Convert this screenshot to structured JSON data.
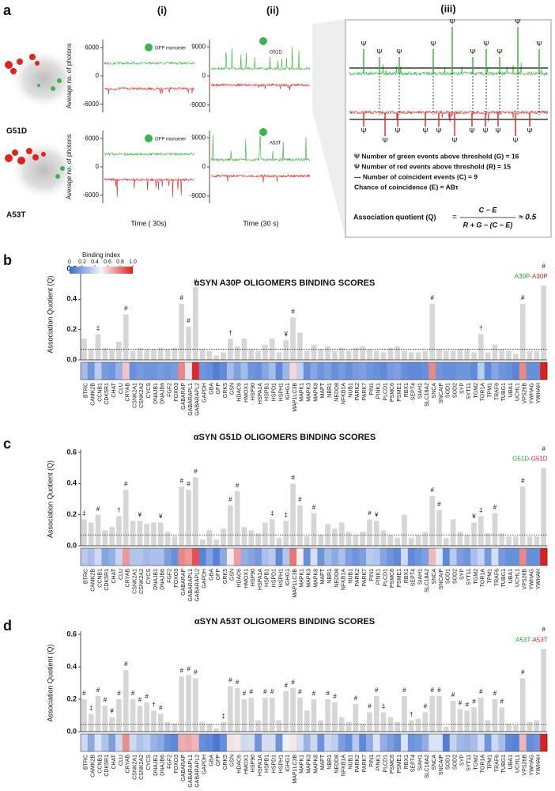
{
  "figure_a": {
    "label": "a",
    "columns": [
      "(i)",
      "(ii)",
      "(iii)"
    ],
    "y_label": "Average no. of photons",
    "x_labels": [
      "Time ( 30s)",
      "Time (30 s)"
    ],
    "rows": [
      {
        "mutant": "G51D",
        "traces": [
          {
            "inset": "GFP monomer",
            "yticks": [
              6000,
              0,
              -6000
            ],
            "ylim": [
              -7700,
              7700
            ]
          },
          {
            "inset": "G51D",
            "yticks": [
              9000,
              0,
              -9000
            ],
            "ylim": [
              -11250,
              11250
            ]
          }
        ]
      },
      {
        "mutant": "A53T",
        "traces": [
          {
            "inset": "GFP monomer",
            "yticks": [
              6000,
              0,
              -6000
            ],
            "ylim": [
              -7700,
              7700
            ]
          },
          {
            "inset": "A53T",
            "yticks": [
              9000,
              0,
              -9000
            ],
            "ylim": [
              -11250,
              11250
            ]
          }
        ]
      }
    ],
    "event_symbol": "Ψ",
    "legend": [
      {
        "text": "Ψ Number of green events above threshold (G) = 16",
        "color": "#22a822"
      },
      {
        "text": "Ψ Number of red events above threshold (R) = 15",
        "color": "#e02020"
      },
      {
        "text": "--- Number of coincident events (C) = 9",
        "color": "#111111"
      },
      {
        "text": "Chance of coincidence (E) = ABτ",
        "color": "#111111"
      }
    ],
    "equation": {
      "lhs": "Association quotient (Q)",
      "equals": "=",
      "numerator": "C − E",
      "denominator": "R + G − (C − E)",
      "result": "≈ 0.5"
    }
  },
  "chart_data": [
    {
      "type": "bar",
      "panel": "b",
      "title": "αSYN A30P OLIGOMERS BINDING SCORES",
      "y_label": "Association Quotient (Q)",
      "ylim": [
        0,
        0.6
      ],
      "yticks": [
        {
          "value": 0,
          "label": "0.0"
        },
        0.2,
        0.4,
        0.6
      ],
      "threshold": 0.07,
      "color": "#d6d6d6",
      "self_label": [
        {
          "text": "A30P-",
          "color": "#22a822"
        },
        {
          "text": "A30P",
          "color": "#e02020"
        }
      ],
      "colorbar": {
        "title": "Binding index",
        "lim": [
          0,
          1
        ],
        "ticks": [
          0,
          0.2,
          0.4,
          0.6,
          0.8,
          {
            "value": 1,
            "label": "1.0"
          }
        ]
      },
      "categories": [
        "BTRC",
        "CAMK2B",
        "CCNB1",
        "CDK5R1",
        "CHAT",
        "CLU",
        "CRYAB",
        "CSNK2A1",
        "CSNK2A2",
        "CYCS",
        "DNAJB1",
        "DNAJB6",
        "FGF2",
        "FOXO3",
        "GABARAP",
        "GABARAPL1",
        "GABARAPL2",
        "GAPDH",
        "GBA",
        "GFP",
        "GRK5",
        "GSN",
        "HDAC6",
        "HMOX1",
        "HSP90",
        "HSPA1A",
        "HSPB1",
        "HSPD1",
        "HSPH1",
        "IGHG1",
        "MAP1LC3B",
        "MAPK1",
        "MAPK3",
        "MAPK8",
        "MAPT",
        "NBR1",
        "NEDD8",
        "NFKB1A",
        "NUB1",
        "PARK2",
        "PARK7",
        "PIN1",
        "PINK1",
        "PLCD1",
        "PSMC6",
        "PSME1",
        "RBX1",
        "SEPT4",
        "SIAH1",
        "SLC18A2",
        "SNCA",
        "SNCAIP",
        "SOD1",
        "SOD2",
        "SYP",
        "SYT11",
        "TGM2",
        "TOR1A",
        "TPM1",
        "TRAF6",
        "TUBG1",
        "UBA1",
        "UCHL1",
        "VPS26B",
        "YWHAG",
        "YWHAH",
        null
      ],
      "values": [
        0.14,
        0.07,
        0.17,
        0.08,
        0.07,
        0.12,
        0.3,
        0.06,
        0.08,
        0.07,
        0.07,
        0.08,
        0.07,
        0.08,
        0.37,
        0.22,
        0.48,
        0.07,
        0.06,
        0.03,
        0.05,
        0.14,
        0.09,
        0.14,
        0.07,
        0.06,
        0.1,
        0.14,
        0.05,
        0.13,
        0.28,
        0.18,
        0.06,
        0.1,
        0.07,
        0.09,
        0.06,
        0.08,
        0.06,
        0.08,
        0.09,
        0.07,
        0.06,
        0.05,
        0.08,
        0.09,
        0.06,
        0.05,
        0.05,
        0.06,
        0.37,
        0.07,
        0.06,
        0.06,
        0.07,
        0.07,
        0.05,
        0.17,
        0.05,
        0.1,
        0.07,
        0.06,
        0.04,
        0.37,
        0.06,
        0.06,
        0.49
      ],
      "markers": [
        null,
        null,
        "‡",
        null,
        null,
        null,
        "#",
        null,
        null,
        null,
        null,
        null,
        null,
        null,
        "#",
        "#",
        "#",
        null,
        null,
        null,
        null,
        "†",
        null,
        null,
        null,
        null,
        null,
        null,
        null,
        "¥",
        "#",
        null,
        null,
        null,
        null,
        null,
        null,
        null,
        null,
        null,
        null,
        null,
        null,
        null,
        null,
        null,
        null,
        null,
        null,
        null,
        "#",
        null,
        null,
        null,
        null,
        null,
        null,
        "†",
        null,
        null,
        null,
        null,
        null,
        "#",
        null,
        null,
        "#"
      ]
    },
    {
      "type": "bar",
      "panel": "c",
      "title": "αSYN G51D OLIGOMERS BINDING SCORES",
      "y_label": "Association Quotient (Q)",
      "ylim": [
        0,
        0.6
      ],
      "yticks": [
        {
          "value": 0,
          "label": "0.0"
        },
        0.2,
        0.4,
        0.6
      ],
      "threshold": 0.07,
      "color": "#d6d6d6",
      "self_label": [
        {
          "text": "G51D-",
          "color": "#22a822"
        },
        {
          "text": "G51D",
          "color": "#e02020"
        }
      ],
      "categories": [
        "BTRC",
        "CAMK2B",
        "CCNB1",
        "CDK5R1",
        "CHAT",
        "CLU",
        "CRYAB",
        "CSNK2A1",
        "CSNK2A2",
        "CYCS",
        "DNAJB1",
        "DNAJB6",
        "FGF2",
        "FOXO3",
        "GABARAP",
        "GABARAPL1",
        "GABARAPL2",
        "GAPDH",
        "GBA",
        "GFP",
        "GRK5",
        "GSN",
        "HDAC6",
        "HMOX1",
        "HSP90",
        "HSPA1A",
        "HSPB1",
        "HSPD1",
        "HSPH1",
        "IGHG1",
        "MAP1LC3B",
        "MAPK1",
        "MAPK3",
        "MAPK8",
        "MAPT",
        "NBR1",
        "NEDD8",
        "NFKB1A",
        "NUB1",
        "PARK2",
        "PARK7",
        "PIN1",
        "PINK1",
        "PLCD1",
        "PSMC6",
        "PSME1",
        "RBX1",
        "SEPT4",
        "SIAH1",
        "SLC18A2",
        "SNCA",
        "SNCAIP",
        "SOD1",
        "SOD2",
        "SYP",
        "SYT11",
        "TGM2",
        "TOR1A",
        "TPM1",
        "TRAF6",
        "TUBG1",
        "UBA1",
        "UCHL1",
        "VPS26B",
        "YWHAG",
        "YWHAH",
        null
      ],
      "values": [
        0.17,
        0.15,
        0.2,
        0.1,
        0.12,
        0.19,
        0.36,
        0.16,
        0.16,
        0.14,
        0.15,
        0.15,
        0.09,
        0.06,
        0.38,
        0.36,
        0.44,
        0.04,
        0.1,
        0.04,
        0.11,
        0.26,
        0.35,
        0.12,
        0.1,
        0.08,
        0.15,
        0.17,
        0.05,
        0.16,
        0.4,
        0.26,
        0.06,
        0.21,
        0.07,
        0.14,
        0.11,
        0.15,
        0.09,
        0.07,
        0.09,
        0.17,
        0.16,
        0.1,
        0.07,
        0.05,
        0.2,
        0.05,
        0.07,
        0.09,
        0.32,
        0.23,
        0.05,
        0.17,
        0.09,
        0.07,
        0.15,
        0.19,
        0.08,
        0.21,
        0.08,
        0.06,
        0.06,
        0.38,
        0.06,
        0.06,
        0.5
      ],
      "markers": [
        "‡",
        null,
        "#",
        null,
        null,
        "†",
        "#",
        null,
        "¥",
        null,
        null,
        "¥",
        null,
        null,
        "#",
        "#",
        "#",
        null,
        null,
        null,
        null,
        "#",
        "#",
        null,
        null,
        null,
        null,
        "‡",
        null,
        "‡",
        "#",
        "#",
        null,
        "#",
        null,
        null,
        null,
        null,
        null,
        null,
        null,
        "#",
        "¥",
        null,
        null,
        null,
        null,
        null,
        null,
        null,
        "#",
        "#",
        null,
        null,
        null,
        null,
        "¥",
        "‡",
        null,
        "#",
        null,
        null,
        null,
        "#",
        null,
        null,
        "#"
      ]
    },
    {
      "type": "bar",
      "panel": "d",
      "title": "αSYN A53T OLIGOMERS BINDING SCORES",
      "y_label": "Association Quotient (Q)",
      "ylim": [
        0,
        0.6
      ],
      "yticks": [
        {
          "value": 0,
          "label": "0.0"
        },
        0.2,
        0.4,
        0.6
      ],
      "threshold": 0.045,
      "color": "#d6d6d6",
      "self_label": [
        {
          "text": "A53T-",
          "color": "#22a822"
        },
        {
          "text": "A53T",
          "color": "#e02020"
        }
      ],
      "categories": [
        "BTRC",
        "CAMK2B",
        "CCNB1",
        "CDK5R1",
        "CHAT",
        "CLU",
        "CRYAB",
        "CSNK2A1",
        "CSNK2A2",
        "CYCS",
        "DNAJB1",
        "DNAJB6",
        "FGF2",
        "FOXO3",
        "GABARAP",
        "GABARAPL1",
        "GABARAPL2",
        "GAPDH",
        "GBA",
        "GFP",
        "GRK5",
        "GSN",
        "HDAC6",
        "HMOX1",
        "HSP90",
        "HSPA1A",
        "HSPB1",
        "HSPD1",
        "HSPH1",
        "IGHG1",
        "MAP1LC3B",
        "MAPK1",
        "MAPK3",
        "MAPK8",
        "MAPT",
        "NBR1",
        "NEDD8",
        "NFKB1A",
        "NUB1",
        "PARK2",
        "PARK7",
        "PIN1",
        "PINK1",
        "PLCD1",
        "PSMC6",
        "PSME1",
        "RBX1",
        "SEPT4",
        "SIAH1",
        "SLC18A2",
        "SNCA",
        "SNCAIP",
        "SOD1",
        "SOD2",
        "SYP",
        "SYT11",
        "TGM2",
        "TOR1A",
        "TPM1",
        "TRAF6",
        "TUBG1",
        "UBA1",
        "UCHL1",
        "VPS26B",
        "YWHAG",
        "YWHAH",
        null
      ],
      "values": [
        0.2,
        0.11,
        0.22,
        0.16,
        0.09,
        0.2,
        0.38,
        0.2,
        0.16,
        0.18,
        0.13,
        0.11,
        0.06,
        0.05,
        0.34,
        0.35,
        0.33,
        0.06,
        0.05,
        0.02,
        0.06,
        0.28,
        0.27,
        0.2,
        0.21,
        0.07,
        0.21,
        0.21,
        0.07,
        0.25,
        0.27,
        0.21,
        0.13,
        0.2,
        0.07,
        0.2,
        0.18,
        0.09,
        0.06,
        0.17,
        0.05,
        0.12,
        0.22,
        0.12,
        0.09,
        0.06,
        0.22,
        0.07,
        0.08,
        0.12,
        0.22,
        0.22,
        0.03,
        0.19,
        0.14,
        0.13,
        0.15,
        0.21,
        0.07,
        0.2,
        0.15,
        0.05,
        0.04,
        0.33,
        0.06,
        0.07,
        0.51
      ],
      "markers": [
        "#",
        "‡",
        "#",
        "#",
        "¥",
        "#",
        "#",
        "#",
        "#",
        "#",
        "†",
        "#",
        null,
        null,
        "#",
        "#",
        "#",
        null,
        null,
        null,
        "‡",
        "#",
        "#",
        "#",
        "#",
        null,
        "#",
        "#",
        null,
        "#",
        "#",
        "#",
        null,
        "#",
        null,
        "#",
        "#",
        null,
        null,
        "#",
        null,
        "#",
        "#",
        "‡",
        null,
        null,
        "#",
        "†",
        null,
        "#",
        "#",
        "#",
        null,
        "#",
        "#",
        "#",
        "#",
        "#",
        null,
        "#",
        "#",
        null,
        null,
        "#",
        null,
        null,
        "#"
      ]
    }
  ]
}
